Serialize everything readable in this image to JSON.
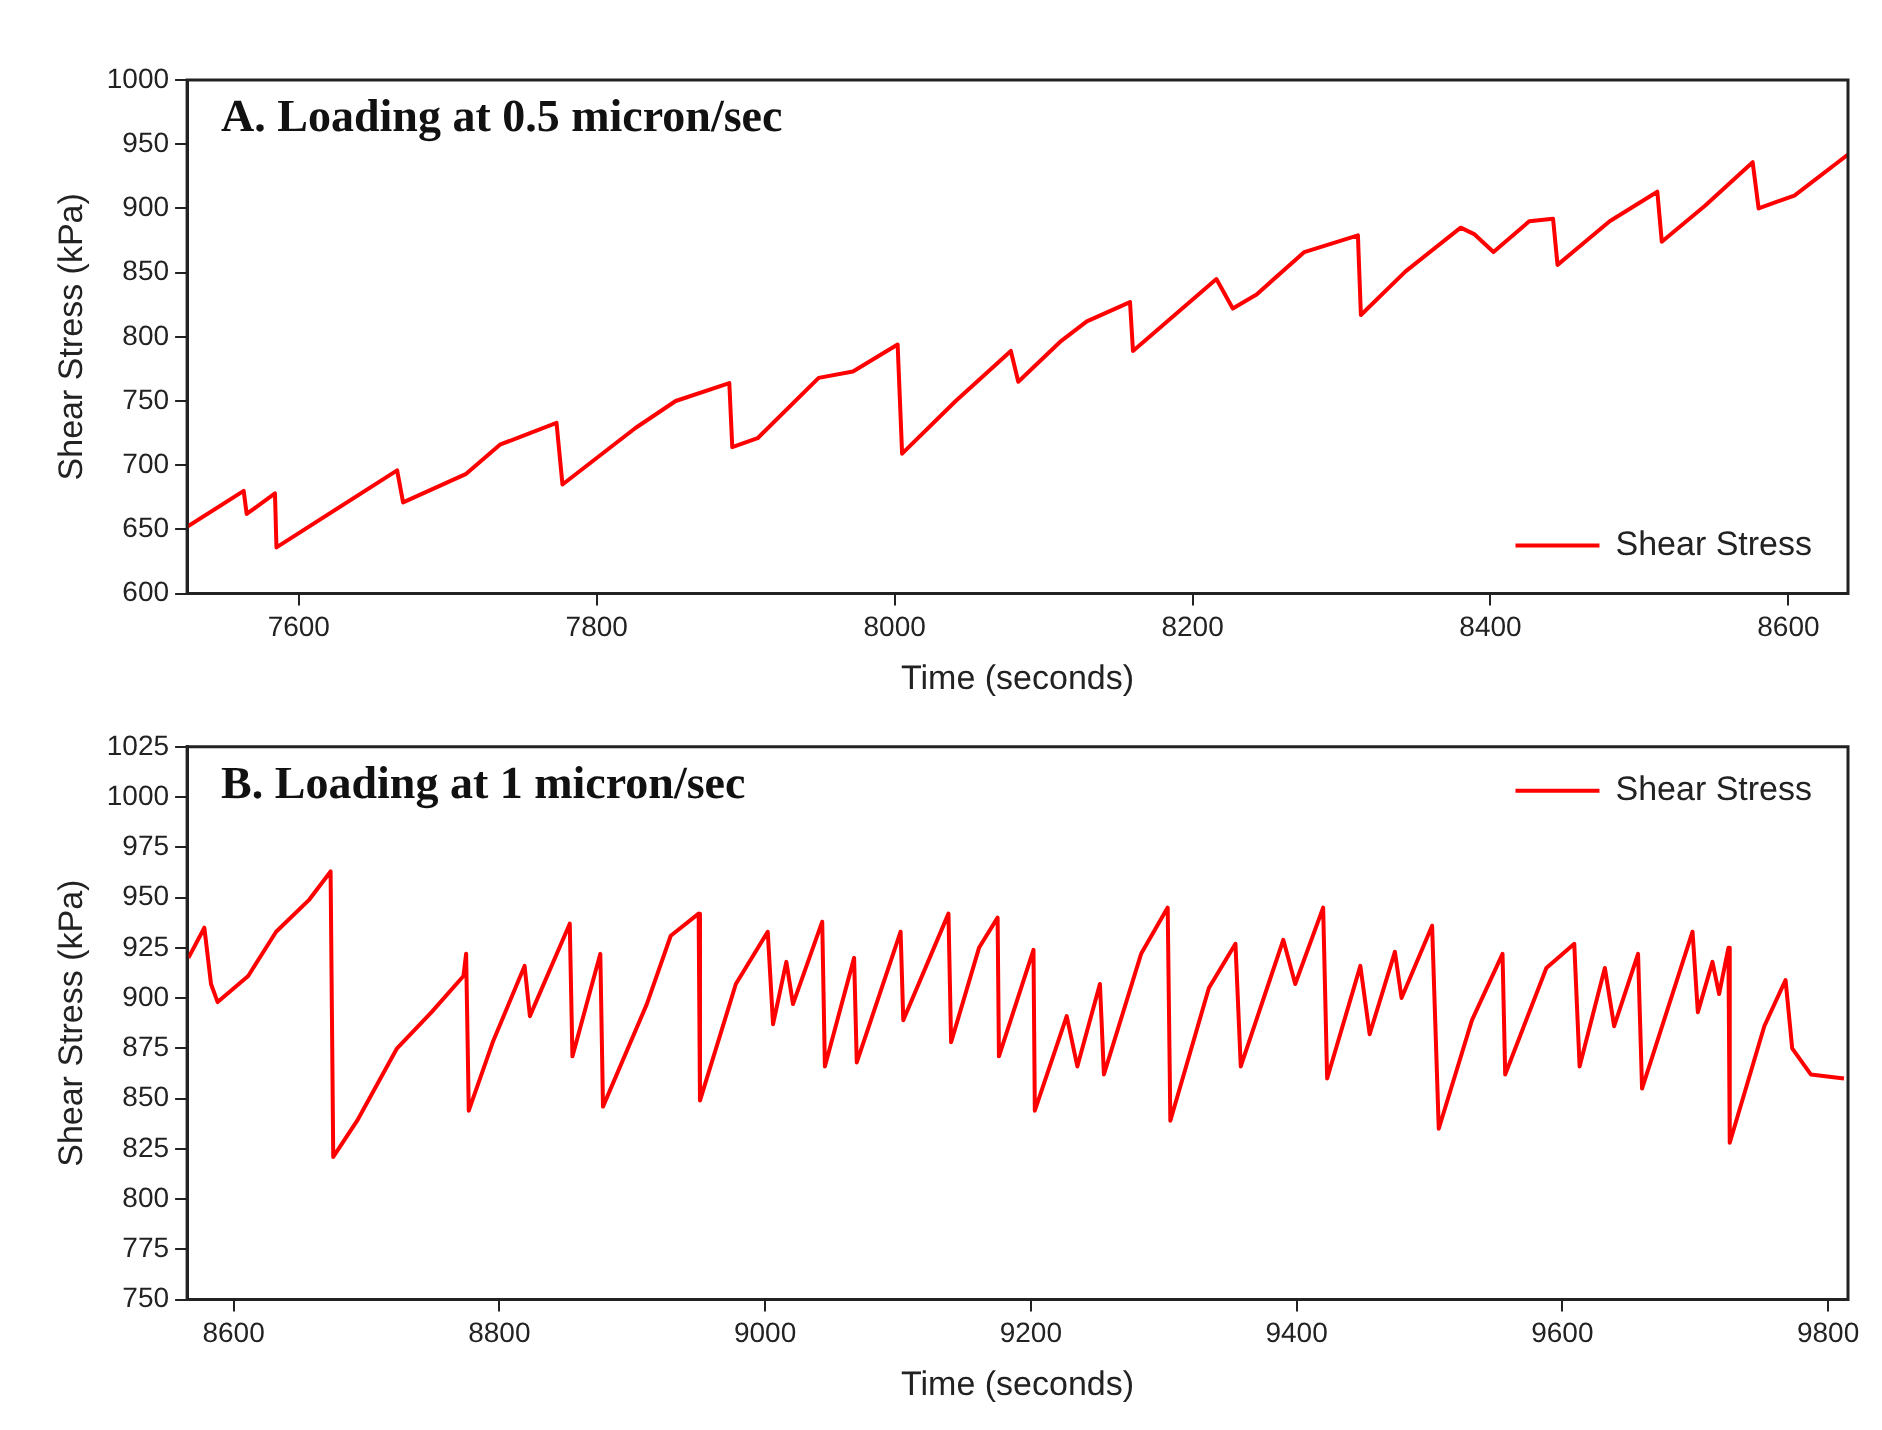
{
  "chart_data": [
    {
      "type": "line",
      "title": "A. Loading at 0.5 micron/sec",
      "xlabel": "Time (seconds)",
      "ylabel": "Shear Stress (kPa)",
      "legend": "bottom right",
      "x": [
        7525,
        7563,
        7565,
        7584,
        7585,
        7666,
        7670,
        7712,
        7735,
        7773,
        7777,
        7826,
        7853,
        7889,
        7891,
        7908,
        7949,
        7972,
        8002,
        8005,
        8041,
        8078,
        8083,
        8111,
        8129,
        8158,
        8160,
        8188,
        8216,
        8227,
        8243,
        8275,
        8311,
        8313,
        8343,
        8380,
        8389,
        8402,
        8426,
        8442,
        8445,
        8480,
        8512,
        8515,
        8544,
        8576,
        8580,
        8604,
        8640
      ],
      "series": [
        {
          "name": "Shear Stress",
          "color": "#ff0000",
          "values": [
            652,
            680,
            662,
            678,
            636,
            696,
            671,
            693,
            716,
            733,
            685,
            729,
            750,
            764,
            714,
            721,
            768,
            773,
            794,
            709,
            750,
            789,
            765,
            796,
            812,
            827,
            789,
            817,
            845,
            822,
            833,
            866,
            879,
            817,
            851,
            885,
            880,
            866,
            890,
            892,
            856,
            890,
            913,
            874,
            902,
            936,
            900,
            910,
            942
          ]
        }
      ],
      "xlim": [
        7525,
        8640
      ],
      "ylim": [
        600,
        1000
      ],
      "xticks": [
        7600,
        7800,
        8000,
        8200,
        8400,
        8600
      ],
      "yticks": [
        600,
        650,
        700,
        750,
        800,
        850,
        900,
        950,
        1000
      ]
    },
    {
      "type": "line",
      "title": "B. Loading at 1 micron/sec",
      "xlabel": "Time (seconds)",
      "ylabel": "Shear Stress (kPa)",
      "legend": "top right",
      "x": [
        8566,
        8578,
        8583,
        8588,
        8611,
        8632,
        8657,
        8673,
        8675,
        8693,
        8723,
        8749,
        8773,
        8775,
        8777,
        8795,
        8819,
        8823,
        8853,
        8855,
        8876,
        8878,
        8911,
        8929,
        8950,
        8951,
        8978,
        9002,
        9006,
        9016,
        9021,
        9043,
        9045,
        9067,
        9069,
        9102,
        9104,
        9138,
        9140,
        9161,
        9175,
        9176,
        9202,
        9203,
        9227,
        9235,
        9252,
        9255,
        9283,
        9303,
        9305,
        9334,
        9354,
        9358,
        9390,
        9399,
        9420,
        9423,
        9448,
        9455,
        9474,
        9479,
        9502,
        9507,
        9532,
        9555,
        9557,
        9588,
        9609,
        9613,
        9632,
        9639,
        9657,
        9660,
        9698,
        9702,
        9713,
        9718,
        9725,
        9726,
        9752,
        9768,
        9773,
        9787,
        9812
      ],
      "series": [
        {
          "name": "Shear Stress",
          "color": "#ff0000",
          "values": [
            920,
            935,
            907,
            898,
            911,
            933,
            949,
            963,
            821,
            839,
            875,
            893,
            911,
            922,
            844,
            878,
            916,
            891,
            937,
            871,
            922,
            846,
            897,
            931,
            942,
            849,
            907,
            933,
            887,
            918,
            897,
            938,
            866,
            920,
            868,
            933,
            889,
            942,
            878,
            925,
            940,
            871,
            924,
            844,
            891,
            866,
            907,
            862,
            922,
            945,
            839,
            905,
            927,
            866,
            929,
            907,
            945,
            860,
            916,
            882,
            923,
            900,
            936,
            835,
            889,
            922,
            862,
            915,
            927,
            866,
            915,
            886,
            922,
            855,
            933,
            893,
            918,
            902,
            925,
            828,
            886,
            909,
            875,
            862,
            860
          ]
        }
      ],
      "xlim": [
        8565,
        9815
      ],
      "ylim": [
        750,
        1025
      ],
      "xticks": [
        8600,
        8800,
        9000,
        9200,
        9400,
        9600,
        9800
      ],
      "yticks": [
        750,
        775,
        800,
        825,
        850,
        875,
        900,
        925,
        950,
        975,
        1000,
        1025
      ]
    }
  ]
}
